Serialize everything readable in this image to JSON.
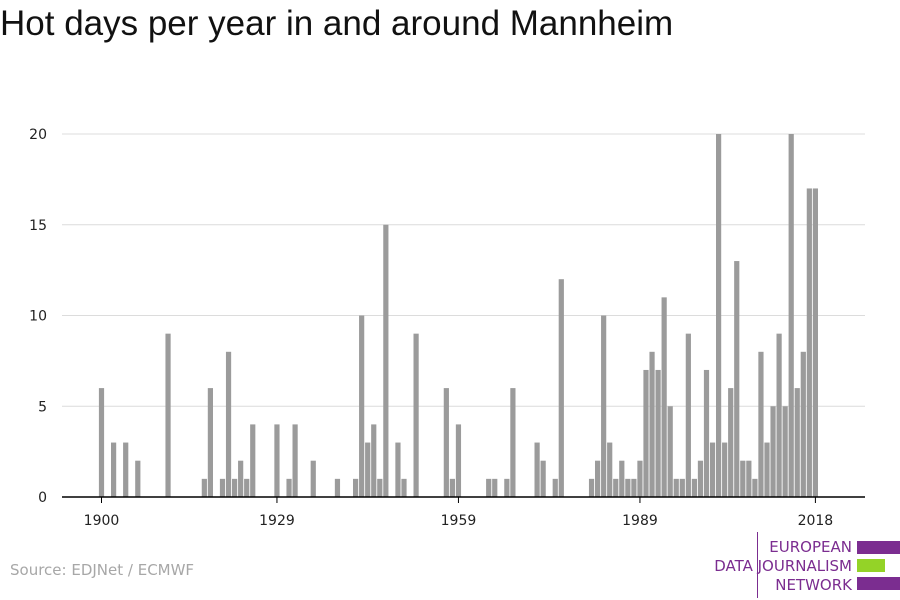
{
  "header": {
    "title": "Hot days per year in and around Mannheim"
  },
  "footer": {
    "source": "Source: EDJNet / ECMWF"
  },
  "logo": {
    "lines": [
      "EUROPEAN",
      "DATA JOURNALISM",
      "NETWORK"
    ],
    "colors": {
      "purple": "#7b2d90",
      "green": "#94d327"
    }
  },
  "chart_data": {
    "type": "bar",
    "xlabel": "",
    "ylabel": "",
    "ylim": [
      0,
      20
    ],
    "yticks": [
      0,
      5,
      10,
      15,
      20
    ],
    "xlim": [
      1900,
      2020
    ],
    "xticks": [
      1900,
      1929,
      1959,
      1989,
      2018
    ],
    "grid": true,
    "bar_color": "#9b9b9b",
    "x": [
      1900,
      1902,
      1904,
      1906,
      1911,
      1917,
      1918,
      1920,
      1921,
      1922,
      1923,
      1924,
      1925,
      1929,
      1931,
      1932,
      1935,
      1939,
      1942,
      1943,
      1944,
      1945,
      1946,
      1947,
      1949,
      1950,
      1952,
      1957,
      1958,
      1959,
      1964,
      1965,
      1967,
      1968,
      1972,
      1973,
      1975,
      1976,
      1981,
      1982,
      1983,
      1984,
      1985,
      1986,
      1987,
      1988,
      1989,
      1990,
      1991,
      1992,
      1993,
      1994,
      1995,
      1996,
      1997,
      1998,
      1999,
      2000,
      2001,
      2002,
      2003,
      2004,
      2005,
      2006,
      2007,
      2008,
      2009,
      2010,
      2011,
      2012,
      2013,
      2014,
      2015,
      2016,
      2017,
      2018
    ],
    "values": [
      6,
      3,
      3,
      2,
      9,
      1,
      6,
      1,
      8,
      1,
      2,
      1,
      4,
      4,
      1,
      4,
      2,
      1,
      1,
      10,
      3,
      4,
      1,
      15,
      3,
      1,
      9,
      6,
      1,
      4,
      1,
      1,
      1,
      6,
      3,
      2,
      1,
      12,
      1,
      2,
      10,
      3,
      1,
      2,
      1,
      1,
      2,
      7,
      8,
      7,
      11,
      5,
      1,
      1,
      9,
      1,
      2,
      7,
      3,
      20,
      3,
      6,
      13,
      2,
      2,
      1,
      8,
      3,
      5,
      9,
      5,
      20,
      6,
      8,
      17,
      17
    ]
  }
}
